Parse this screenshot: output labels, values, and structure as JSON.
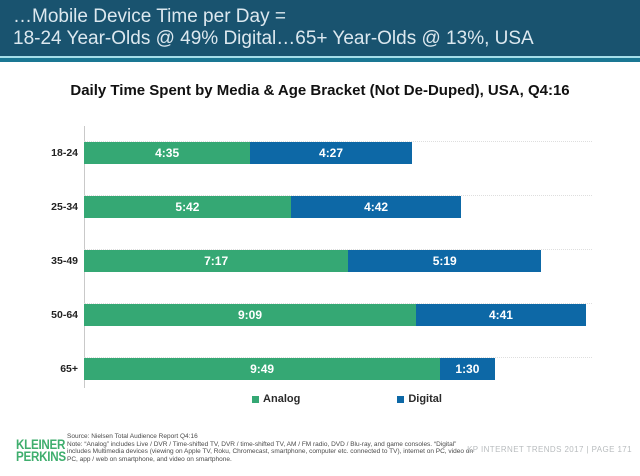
{
  "header": {
    "title_line1": "…Mobile Device Time per Day =",
    "title_line2": "18-24 Year-Olds @ 49% Digital…65+ Year-Olds @ 13%, USA",
    "bg_color": "#19536F",
    "accent_colors": [
      "#A5DEE9",
      "#1A7793"
    ]
  },
  "chart_data": {
    "type": "bar",
    "orientation": "horizontal",
    "stacked": true,
    "title": "Daily Time Spent by Media & Age Bracket (Not De-Duped), USA, Q4:16",
    "categories": [
      "18-24",
      "25-34",
      "35-49",
      "50-64",
      "65+"
    ],
    "series": [
      {
        "name": "Analog",
        "color": "#35A874",
        "labels": [
          "4:35",
          "5:42",
          "7:17",
          "9:09",
          "9:49"
        ],
        "values_hours": [
          4.583,
          5.7,
          7.283,
          9.15,
          9.817
        ]
      },
      {
        "name": "Digital",
        "color": "#0D68A6",
        "labels": [
          "4:27",
          "4:42",
          "5:19",
          "4:41",
          "1:30"
        ],
        "values_hours": [
          4.45,
          4.7,
          5.317,
          4.683,
          1.5
        ]
      }
    ],
    "x_axis": {
      "min_hours": 0,
      "max_hours": 14,
      "gridlines": false,
      "tick_labels": []
    },
    "legend_position": "bottom",
    "value_label_format": "h:mm"
  },
  "footer": {
    "logo_line1": "KLEINER",
    "logo_line2": "PERKINS",
    "logo_color": "#3FAE6E",
    "source_line": "Source: Nielsen Total Audience Report Q4:16",
    "note_line": "Note: “Analog” includes Live / DVR / Time-shifted TV, DVR / time-shifted TV, AM / FM radio, DVD / Blu-ray, and game consoles. “Digital” includes Multimedia devices (viewing on Apple TV, Roku, Chromecast, smartphone, computer etc. connected to TV), internet on PC, video on PC, app / web on smartphone, and video on smartphone.",
    "right_text": "KP INTERNET TRENDS 2017   |   PAGE 171"
  }
}
